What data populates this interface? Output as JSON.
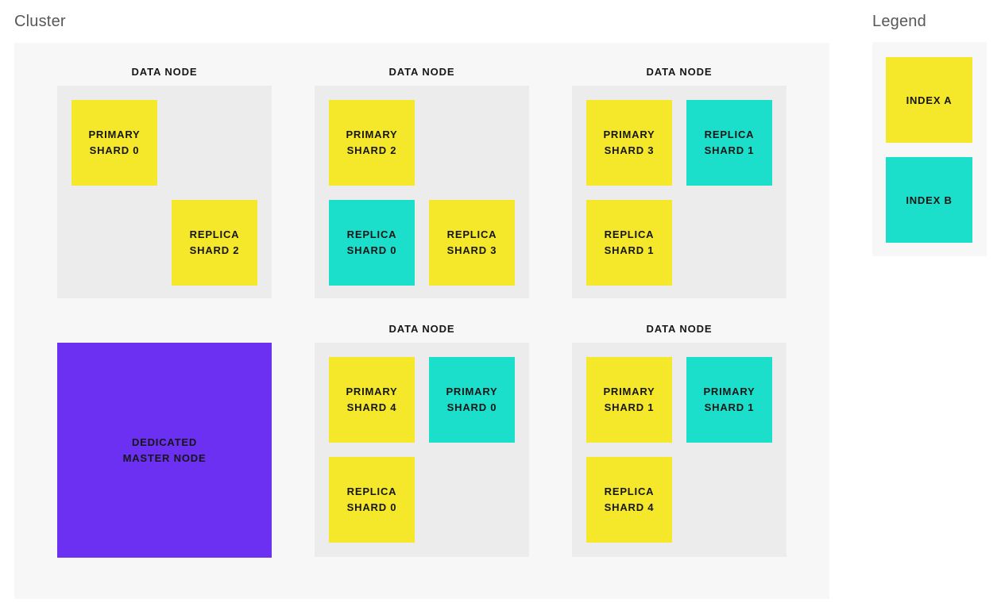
{
  "cluster": {
    "title": "Cluster",
    "nodes": [
      {
        "label": "DATA NODE",
        "shards": [
          {
            "lines": [
              "PRIMARY",
              "SHARD 0"
            ],
            "index": "index-a",
            "pos": "r1c1"
          },
          {
            "lines": [
              "REPLICA",
              "SHARD 2"
            ],
            "index": "index-a",
            "pos": "r2c2"
          }
        ]
      },
      {
        "label": "DATA NODE",
        "shards": [
          {
            "lines": [
              "PRIMARY",
              "SHARD 2"
            ],
            "index": "index-a",
            "pos": "r1c1"
          },
          {
            "lines": [
              "REPLICA",
              "SHARD 0"
            ],
            "index": "index-b",
            "pos": "r2c1"
          },
          {
            "lines": [
              "REPLICA",
              "SHARD 3"
            ],
            "index": "index-a",
            "pos": "r2c2"
          }
        ]
      },
      {
        "label": "DATA NODE",
        "shards": [
          {
            "lines": [
              "PRIMARY",
              "SHARD 3"
            ],
            "index": "index-a",
            "pos": "r1c1"
          },
          {
            "lines": [
              "REPLICA",
              "SHARD 1"
            ],
            "index": "index-b",
            "pos": "r1c2"
          },
          {
            "lines": [
              "REPLICA",
              "SHARD 1"
            ],
            "index": "index-a",
            "pos": "r2c1"
          }
        ]
      },
      {
        "label": "DATA NODE",
        "shards": [
          {
            "lines": [
              "PRIMARY",
              "SHARD 4"
            ],
            "index": "index-a",
            "pos": "r1c1"
          },
          {
            "lines": [
              "PRIMARY",
              "SHARD 0"
            ],
            "index": "index-b",
            "pos": "r1c2"
          },
          {
            "lines": [
              "REPLICA",
              "SHARD 0"
            ],
            "index": "index-a",
            "pos": "r2c1"
          }
        ]
      },
      {
        "label": "DATA NODE",
        "shards": [
          {
            "lines": [
              "PRIMARY",
              "SHARD 1"
            ],
            "index": "index-a",
            "pos": "r1c1"
          },
          {
            "lines": [
              "PRIMARY",
              "SHARD 1"
            ],
            "index": "index-b",
            "pos": "r1c2"
          },
          {
            "lines": [
              "REPLICA",
              "SHARD 4"
            ],
            "index": "index-a",
            "pos": "r2c1"
          }
        ]
      }
    ],
    "master": {
      "lines": [
        "DEDICATED",
        "MASTER NODE"
      ]
    }
  },
  "legend": {
    "title": "Legend",
    "items": [
      {
        "label": "INDEX A",
        "index": "index-a"
      },
      {
        "label": "INDEX B",
        "index": "index-b"
      }
    ]
  },
  "colors": {
    "index_a": "#f5e82a",
    "index_b": "#1cdfcb",
    "master_node": "#6b30f2",
    "panel_background": "#f7f7f7",
    "node_background": "#ececec",
    "title_text": "#58585a",
    "label_text": "#161616"
  }
}
